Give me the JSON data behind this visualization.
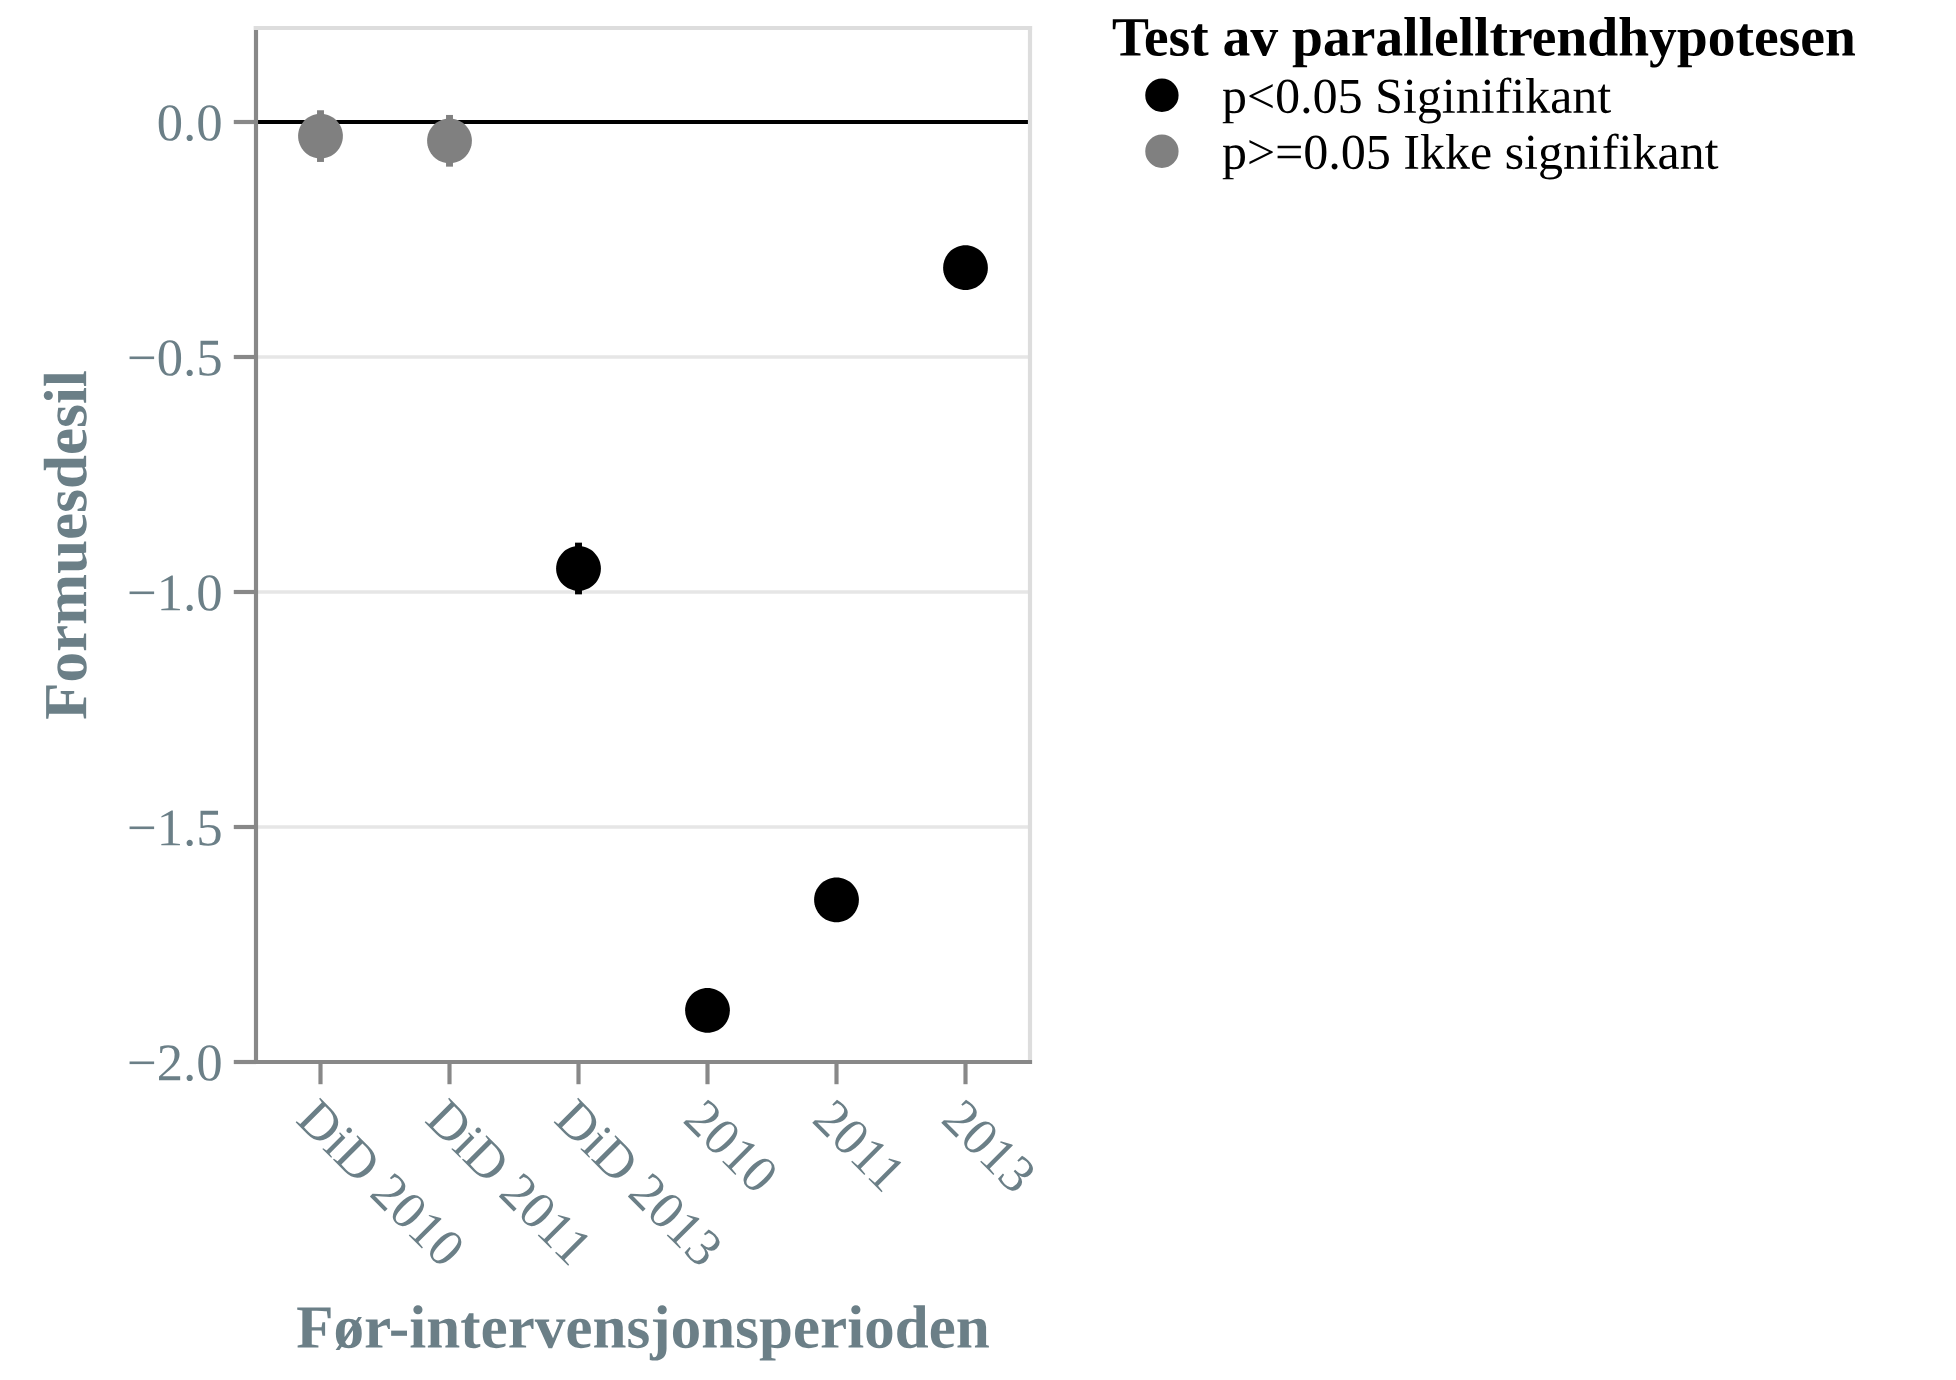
{
  "chart_data": {
    "type": "scatter",
    "xlabel": "Før-intervensjonsperioden",
    "ylabel": "Formuesdesil",
    "legend_title": "Test av parallelltrendhypotesen",
    "categories": [
      "DiD 2010",
      "DiD 2011",
      "DiD 2013",
      "2010",
      "2011",
      "2013"
    ],
    "series": [
      {
        "name": "p<0.05 Siginifikant",
        "color": "#000000",
        "values": [
          null,
          null,
          -0.95,
          -1.89,
          -1.655,
          -0.31
        ],
        "errors": [
          null,
          null,
          0.055,
          null,
          null,
          null
        ]
      },
      {
        "name": "p>=0.05 Ikke signifikant",
        "color": "#808080",
        "values": [
          -0.03,
          -0.04,
          null,
          null,
          null,
          null
        ],
        "errors": [
          0.055,
          0.055,
          null,
          null,
          null,
          null
        ]
      }
    ],
    "ylim": [
      -2.0,
      0.2
    ],
    "yticks": [
      {
        "value": 0.0,
        "label": "0.0"
      },
      {
        "value": -0.5,
        "label": "−0.5"
      },
      {
        "value": -1.0,
        "label": "−1.0"
      },
      {
        "value": -1.5,
        "label": "−1.5"
      },
      {
        "value": -2.0,
        "label": "−2.0"
      }
    ],
    "ref_lines": [
      {
        "axis": "y",
        "value": 0,
        "color": "#000000"
      }
    ],
    "grid": "y",
    "legend": "top right",
    "marker": "circle"
  }
}
